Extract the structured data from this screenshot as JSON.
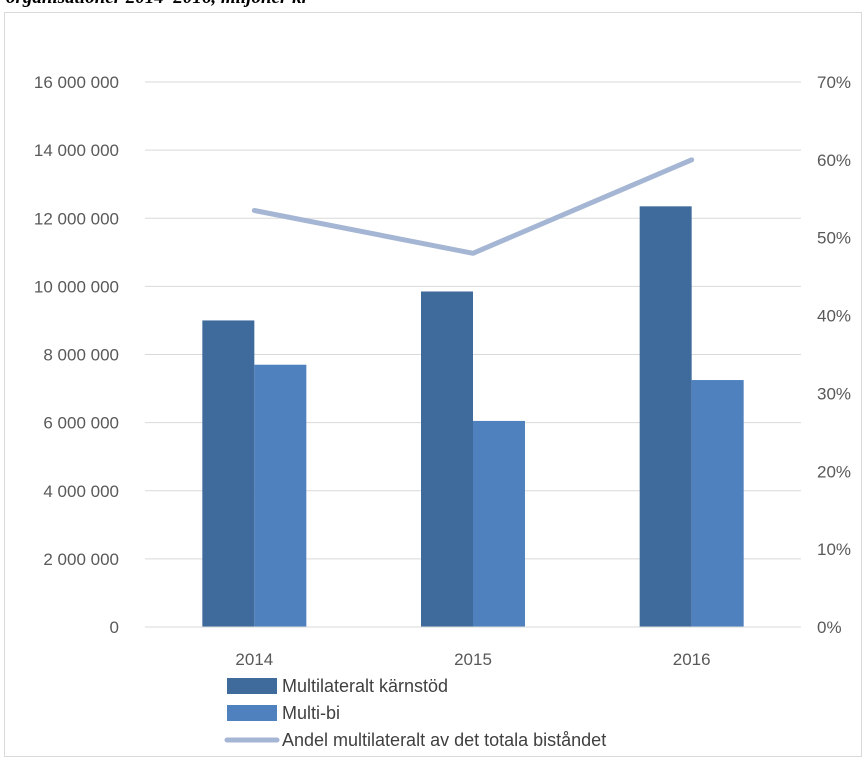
{
  "caption": "organisationer 2014–2016, miljoner kr",
  "chart_data": {
    "type": "bar",
    "categories": [
      "2014",
      "2015",
      "2016"
    ],
    "series": [
      {
        "name": "Multilateralt kärnstöd",
        "kind": "bar",
        "axis": "left",
        "color": "#3f6a9c",
        "values": [
          9000000,
          9850000,
          12350000
        ]
      },
      {
        "name": "Multi-bi",
        "kind": "bar",
        "axis": "left",
        "color": "#4e81bd",
        "values": [
          7700000,
          6050000,
          7250000
        ]
      },
      {
        "name": "Andel multilateralt av det totala biståndet",
        "kind": "line",
        "axis": "right",
        "color": "#a5b6d4",
        "values": [
          0.535,
          0.48,
          0.6
        ]
      }
    ],
    "y_left": {
      "min": 0,
      "max": 16000000,
      "ticks": [
        "0",
        "2 000 000",
        "4 000 000",
        "6 000 000",
        "8 000 000",
        "10 000 000",
        "12 000 000",
        "14 000 000",
        "16 000 000"
      ]
    },
    "y_right": {
      "min": 0,
      "max": 0.7,
      "ticks": [
        "0%",
        "10%",
        "20%",
        "30%",
        "40%",
        "50%",
        "60%",
        "70%"
      ]
    },
    "grid": true,
    "legend_position": "bottom-center"
  }
}
